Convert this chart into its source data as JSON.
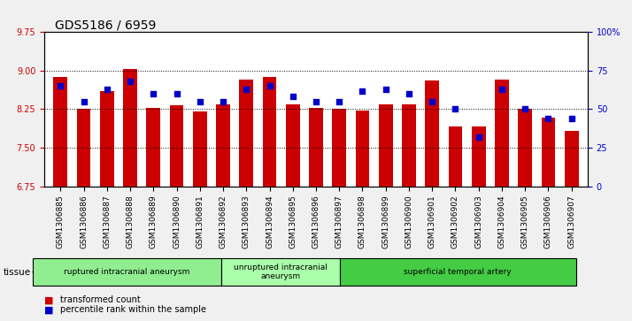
{
  "title": "GDS5186 / 6959",
  "samples": [
    "GSM1306885",
    "GSM1306886",
    "GSM1306887",
    "GSM1306888",
    "GSM1306889",
    "GSM1306890",
    "GSM1306891",
    "GSM1306892",
    "GSM1306893",
    "GSM1306894",
    "GSM1306895",
    "GSM1306896",
    "GSM1306897",
    "GSM1306898",
    "GSM1306899",
    "GSM1306900",
    "GSM1306901",
    "GSM1306902",
    "GSM1306903",
    "GSM1306904",
    "GSM1306905",
    "GSM1306906",
    "GSM1306907"
  ],
  "bar_values": [
    8.88,
    8.25,
    8.6,
    9.04,
    8.28,
    8.32,
    8.2,
    8.35,
    8.83,
    8.88,
    8.35,
    8.28,
    8.25,
    8.22,
    8.35,
    8.35,
    8.8,
    7.92,
    7.92,
    8.83,
    8.25,
    8.08,
    7.82
  ],
  "percentile_values": [
    65,
    55,
    63,
    68,
    60,
    60,
    55,
    55,
    63,
    65,
    58,
    55,
    55,
    62,
    63,
    60,
    55,
    50,
    32,
    63,
    50,
    44,
    44
  ],
  "ylim_left": [
    6.75,
    9.75
  ],
  "ylim_right": [
    0,
    100
  ],
  "y_ticks_left": [
    6.75,
    7.5,
    8.25,
    9.0,
    9.75
  ],
  "y_ticks_right": [
    0,
    25,
    50,
    75,
    100
  ],
  "y_ticks_right_labels": [
    "0",
    "25",
    "50",
    "75",
    "100%"
  ],
  "bar_color": "#CC0000",
  "dot_color": "#0000CC",
  "bar_bottom": 6.75,
  "groups": [
    {
      "label": "ruptured intracranial aneurysm",
      "start": 0,
      "end": 8,
      "color": "#90EE90"
    },
    {
      "label": "unruptured intracranial\naneurysm",
      "start": 8,
      "end": 13,
      "color": "#AAFFAA"
    },
    {
      "label": "superficial temporal artery",
      "start": 13,
      "end": 23,
      "color": "#44CC44"
    }
  ],
  "tissue_label": "tissue",
  "legend_items": [
    {
      "label": "transformed count",
      "color": "#CC0000"
    },
    {
      "label": "percentile rank within the sample",
      "color": "#0000CC"
    }
  ],
  "bg_color": "#F0F0F0",
  "plot_bg_color": "#FFFFFF",
  "title_fontsize": 10,
  "tick_fontsize": 7,
  "axis_color_left": "#CC0000",
  "axis_color_right": "#0000CC"
}
